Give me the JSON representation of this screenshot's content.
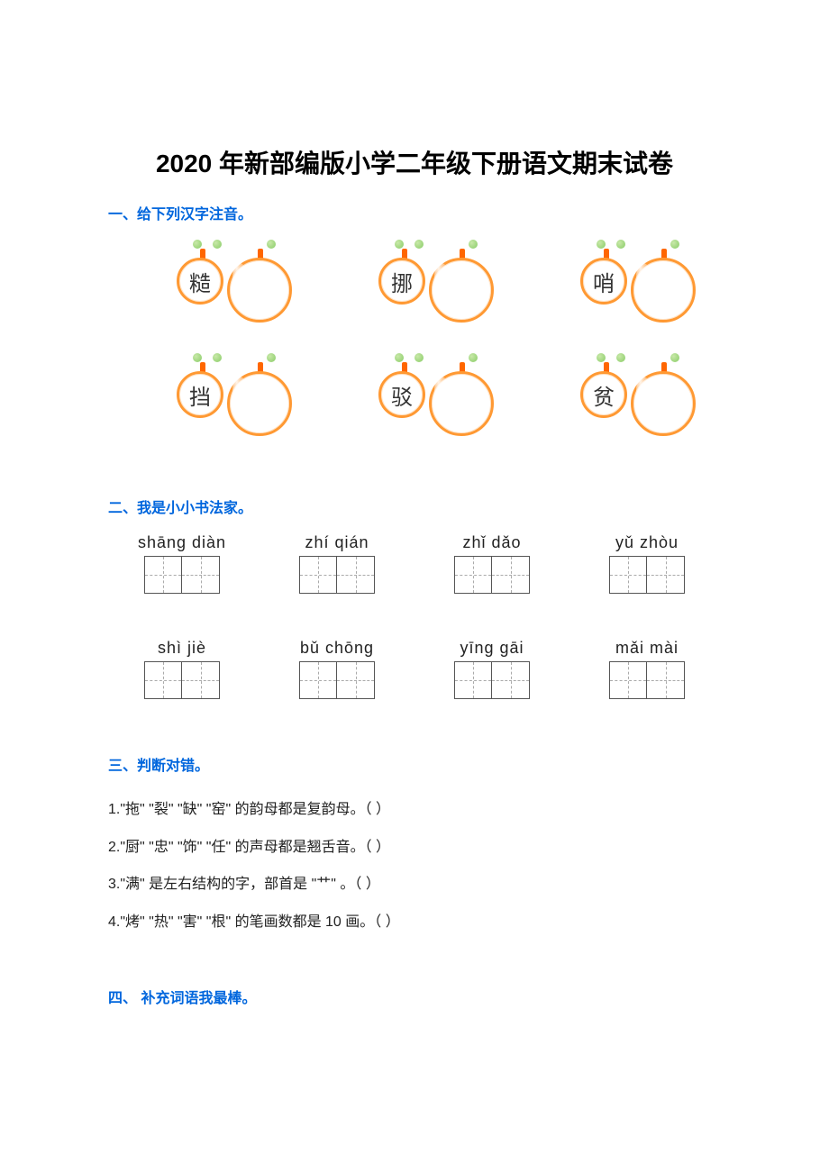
{
  "title": "2020 年新部编版小学二年级下册语文期末试卷",
  "section1": {
    "heading": "一、给下列汉字注音。",
    "chars": [
      "糙",
      "挪",
      "哨",
      "挡",
      "驳",
      "贫"
    ],
    "circle_border": "#ff9933",
    "bead_color": "#88cc66",
    "clip_color": "#ff6600"
  },
  "section2": {
    "heading": "二、我是小小书法家。",
    "items": [
      {
        "pinyin": "shāng diàn"
      },
      {
        "pinyin": "zhí qián"
      },
      {
        "pinyin": "zhǐ dǎo"
      },
      {
        "pinyin": "yǔ zhòu"
      },
      {
        "pinyin": "shì jiè"
      },
      {
        "pinyin": "bǔ chōng"
      },
      {
        "pinyin": "yīng gāi"
      },
      {
        "pinyin": "mǎi mài"
      }
    ]
  },
  "section3": {
    "heading": "三、判断对错。",
    "items": [
      "1.\"拖\" \"裂\" \"缺\" \"窑\" 的韵母都是复韵母。（        ）",
      "2.\"厨\" \"忠\" \"饰\" \"任\" 的声母都是翘舌音。（        ）",
      "3.\"满\" 是左右结构的字，部首是 \"艹\" 。（        ）",
      "4.\"烤\" \"热\" \"害\" \"根\" 的笔画数都是 10 画。（        ）"
    ]
  },
  "section4": {
    "heading": "四、 补充词语我最棒。"
  },
  "colors": {
    "heading": "#0066dd",
    "text": "#222222",
    "grid_border": "#555555",
    "grid_dash": "#aaaaaa"
  }
}
